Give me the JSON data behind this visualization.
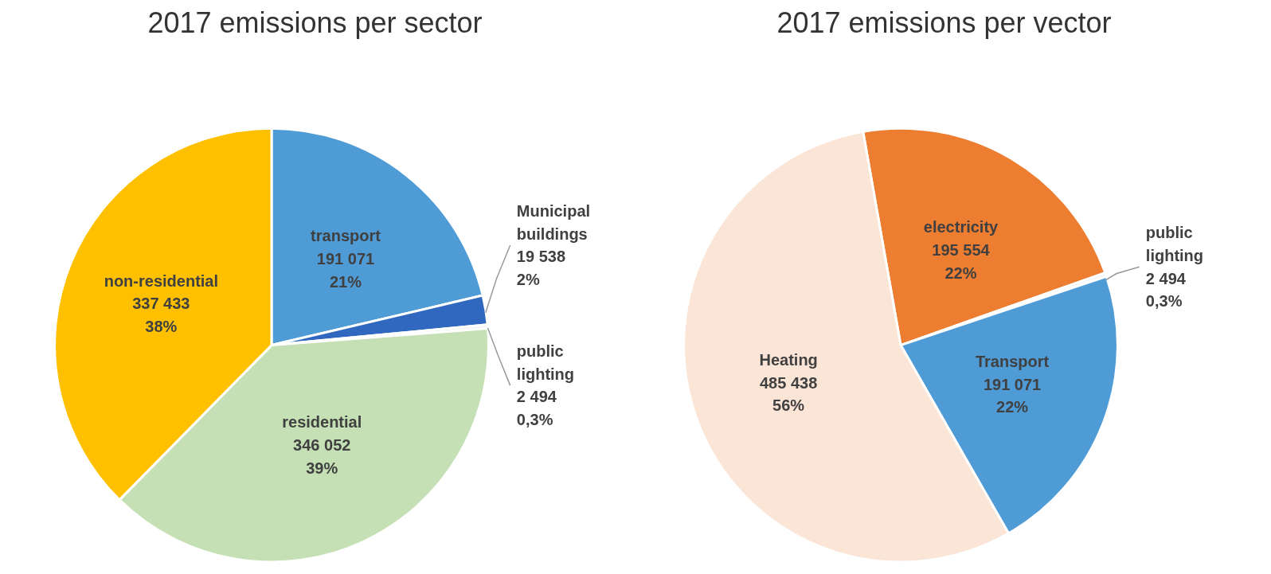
{
  "chart_data": [
    {
      "type": "pie",
      "title": "2017 emissions per sector",
      "categories": [
        "transport",
        "Municipal buildings",
        "public lighting",
        "residential",
        "non-residential"
      ],
      "values": [
        191071,
        19538,
        2494,
        346052,
        337433
      ],
      "colors": [
        "#4f9bd6",
        "#3068c0",
        "#f2f2f2",
        "#c5e0b4",
        "#ffc000"
      ],
      "value_labels": [
        "191 071\n21%",
        "19 538\n2%",
        "2 494\n0,3%",
        "346 052\n39%",
        "337 433\n38%"
      ]
    },
    {
      "type": "pie",
      "title": "2017 emissions per vector",
      "categories": [
        "electricity",
        "public lighting",
        "Transport",
        "Heating"
      ],
      "values": [
        195554,
        2494,
        191071,
        485438
      ],
      "colors": [
        "#ed7d31",
        "#f2f2f2",
        "#4f9bd6",
        "#fbe5d6"
      ],
      "value_labels": [
        "195 554\n22%",
        "2 494\n0,3%",
        "191 071\n22%",
        "485 438\n56%"
      ]
    }
  ]
}
